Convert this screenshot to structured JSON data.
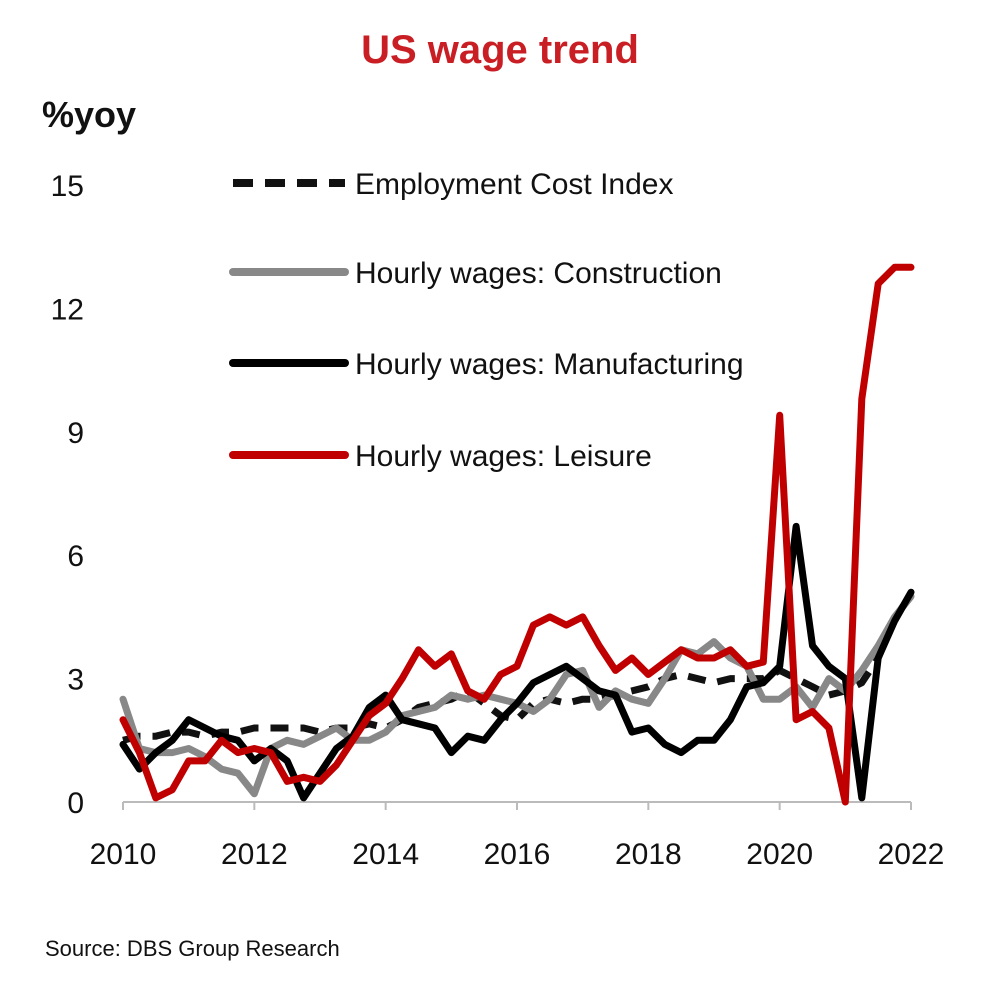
{
  "chart_data": {
    "type": "line",
    "title": "US wage trend",
    "ylabel": "%yoy",
    "xlabel": "",
    "xlim": [
      2010,
      2022
    ],
    "ylim": [
      0,
      15
    ],
    "yticks": [
      0,
      3,
      6,
      9,
      12,
      15
    ],
    "xticks": [
      2010,
      2012,
      2014,
      2016,
      2018,
      2020,
      2022
    ],
    "legend_position": "top",
    "source": "Source: DBS Group Research",
    "series": [
      {
        "name": "Employment Cost Index",
        "color": "#111111",
        "dash": "dashed",
        "x": [
          2010,
          2010.25,
          2010.5,
          2010.75,
          2011,
          2011.25,
          2011.5,
          2011.75,
          2012,
          2012.25,
          2012.5,
          2012.75,
          2013,
          2013.25,
          2013.5,
          2013.75,
          2014,
          2014.25,
          2014.5,
          2014.75,
          2015,
          2015.25,
          2015.5,
          2015.75,
          2016,
          2016.25,
          2016.5,
          2016.75,
          2017,
          2017.25,
          2017.5,
          2017.75,
          2018,
          2018.25,
          2018.5,
          2018.75,
          2019,
          2019.25,
          2019.5,
          2019.75,
          2020,
          2020.25,
          2020.5,
          2020.75,
          2021,
          2021.25,
          2021.5,
          2021.75,
          2022
        ],
        "values": [
          1.5,
          1.6,
          1.6,
          1.7,
          1.7,
          1.6,
          1.7,
          1.7,
          1.8,
          1.8,
          1.8,
          1.8,
          1.7,
          1.8,
          1.8,
          1.9,
          1.8,
          2.0,
          2.3,
          2.4,
          2.5,
          2.7,
          2.4,
          2.1,
          2.0,
          2.4,
          2.5,
          2.4,
          2.5,
          2.5,
          2.6,
          2.7,
          2.8,
          3.0,
          3.1,
          3.0,
          2.9,
          3.0,
          3.0,
          3.0,
          3.2,
          3.0,
          2.8,
          2.6,
          2.7,
          2.9,
          3.5,
          4.5,
          5.0
        ]
      },
      {
        "name": "Hourly wages: Construction",
        "color": "#888888",
        "dash": "solid",
        "x": [
          2010,
          2010.25,
          2010.5,
          2010.75,
          2011,
          2011.25,
          2011.5,
          2011.75,
          2012,
          2012.25,
          2012.5,
          2012.75,
          2013,
          2013.25,
          2013.5,
          2013.75,
          2014,
          2014.25,
          2014.5,
          2014.75,
          2015,
          2015.25,
          2015.5,
          2015.75,
          2016,
          2016.25,
          2016.5,
          2016.75,
          2017,
          2017.25,
          2017.5,
          2017.75,
          2018,
          2018.25,
          2018.5,
          2018.75,
          2019,
          2019.25,
          2019.5,
          2019.75,
          2020,
          2020.25,
          2020.5,
          2020.75,
          2021,
          2021.25,
          2021.5,
          2021.75,
          2022
        ],
        "values": [
          2.5,
          1.3,
          1.2,
          1.2,
          1.3,
          1.1,
          0.8,
          0.7,
          0.2,
          1.3,
          1.5,
          1.4,
          1.6,
          1.8,
          1.5,
          1.5,
          1.7,
          2.1,
          2.2,
          2.3,
          2.6,
          2.5,
          2.6,
          2.5,
          2.4,
          2.2,
          2.5,
          3.1,
          3.2,
          2.3,
          2.7,
          2.5,
          2.4,
          3.0,
          3.7,
          3.6,
          3.9,
          3.5,
          3.3,
          2.5,
          2.5,
          2.8,
          2.3,
          3.0,
          2.7,
          3.2,
          3.8,
          4.5,
          5.0
        ]
      },
      {
        "name": "Hourly wages: Manufacturing",
        "color": "#000000",
        "dash": "solid",
        "x": [
          2010,
          2010.25,
          2010.5,
          2010.75,
          2011,
          2011.25,
          2011.5,
          2011.75,
          2012,
          2012.25,
          2012.5,
          2012.75,
          2013,
          2013.25,
          2013.5,
          2013.75,
          2014,
          2014.25,
          2014.5,
          2014.75,
          2015,
          2015.25,
          2015.5,
          2015.75,
          2016,
          2016.25,
          2016.5,
          2016.75,
          2017,
          2017.25,
          2017.5,
          2017.75,
          2018,
          2018.25,
          2018.5,
          2018.75,
          2019,
          2019.25,
          2019.5,
          2019.75,
          2020,
          2020.25,
          2020.5,
          2020.75,
          2021,
          2021.25,
          2021.5,
          2021.75,
          2022
        ],
        "values": [
          1.4,
          0.8,
          1.2,
          1.5,
          2.0,
          1.8,
          1.6,
          1.5,
          1.0,
          1.3,
          1.0,
          0.1,
          0.7,
          1.3,
          1.6,
          2.3,
          2.6,
          2.0,
          1.9,
          1.8,
          1.2,
          1.6,
          1.5,
          2.0,
          2.4,
          2.9,
          3.1,
          3.3,
          3.0,
          2.7,
          2.6,
          1.7,
          1.8,
          1.4,
          1.2,
          1.5,
          1.5,
          2.0,
          2.8,
          2.9,
          3.3,
          6.7,
          3.8,
          3.3,
          3.0,
          0.1,
          3.5,
          4.4,
          5.1
        ]
      },
      {
        "name": "Hourly wages: Leisure",
        "color": "#c00000",
        "dash": "solid",
        "x": [
          2010,
          2010.25,
          2010.5,
          2010.75,
          2011,
          2011.25,
          2011.5,
          2011.75,
          2012,
          2012.25,
          2012.5,
          2012.75,
          2013,
          2013.25,
          2013.5,
          2013.75,
          2014,
          2014.25,
          2014.5,
          2014.75,
          2015,
          2015.25,
          2015.5,
          2015.75,
          2016,
          2016.25,
          2016.5,
          2016.75,
          2017,
          2017.25,
          2017.5,
          2017.75,
          2018,
          2018.25,
          2018.5,
          2018.75,
          2019,
          2019.25,
          2019.5,
          2019.75,
          2020,
          2020.25,
          2020.5,
          2020.75,
          2021,
          2021.25,
          2021.5,
          2021.75,
          2022
        ],
        "values": [
          2.0,
          1.2,
          0.1,
          0.3,
          1.0,
          1.0,
          1.5,
          1.2,
          1.3,
          1.2,
          0.5,
          0.6,
          0.5,
          0.9,
          1.5,
          2.1,
          2.4,
          3.0,
          3.7,
          3.3,
          3.6,
          2.7,
          2.5,
          3.1,
          3.3,
          4.3,
          4.5,
          4.3,
          4.5,
          3.8,
          3.2,
          3.5,
          3.1,
          3.4,
          3.7,
          3.5,
          3.5,
          3.7,
          3.3,
          3.4,
          9.4,
          2.0,
          2.2,
          1.8,
          0.0,
          9.8,
          12.6,
          13.0,
          13.0
        ]
      }
    ]
  }
}
